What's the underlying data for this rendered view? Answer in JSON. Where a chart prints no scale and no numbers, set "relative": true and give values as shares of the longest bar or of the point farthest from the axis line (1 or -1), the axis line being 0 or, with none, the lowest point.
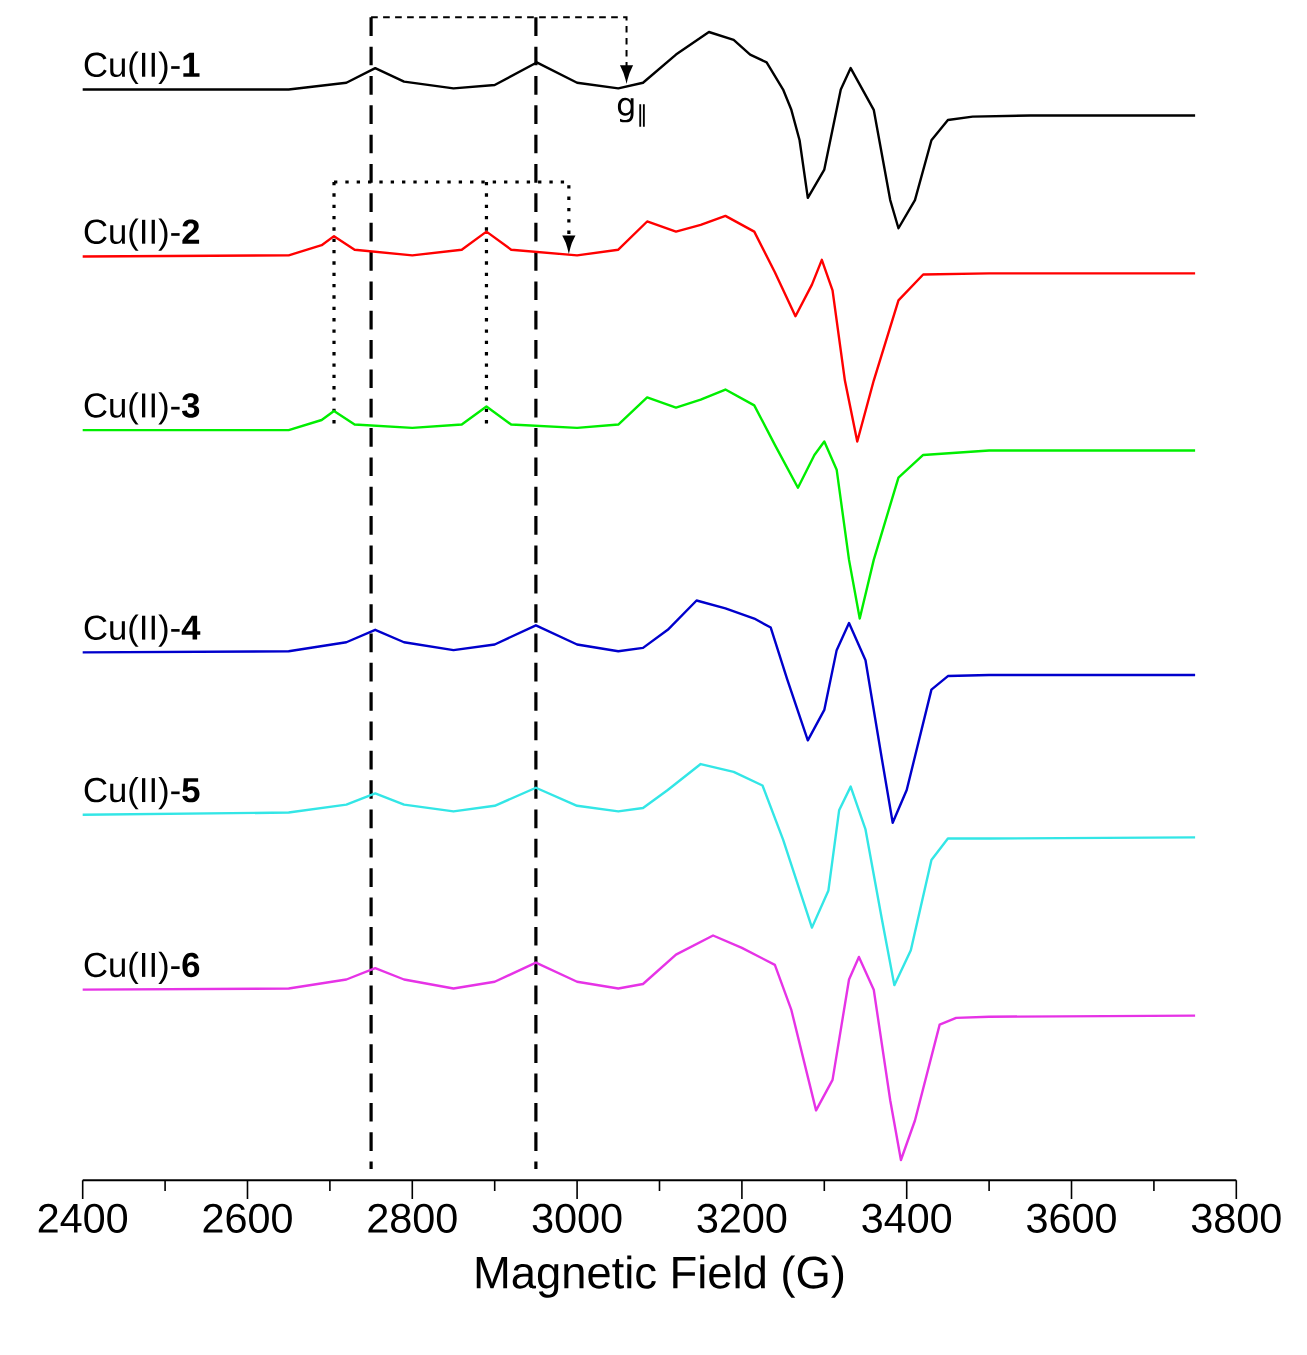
{
  "chart_data": {
    "type": "line",
    "relative": true,
    "xlabel": "Magnetic Field (G)",
    "xlim": [
      2400,
      3800
    ],
    "xticks": [
      2400,
      2600,
      2800,
      3000,
      3200,
      3400,
      3600,
      3800
    ],
    "grid": false,
    "annotations": [
      "g$_{‖}$"
    ],
    "ref_lines": [
      {
        "axis": "x",
        "value": 2750,
        "line_style": "dashed"
      },
      {
        "axis": "x",
        "value": 2950,
        "line_style": "dashed"
      },
      {
        "axis": "x",
        "value": 2705,
        "line_style": "dotted"
      },
      {
        "axis": "x",
        "value": 2890,
        "line_style": "dotted"
      }
    ],
    "series": [
      {
        "name": "Cu(II)-**1**",
        "color": "#000000",
        "x": [
          2400,
          2650,
          2720,
          2755,
          2790,
          2850,
          2900,
          2951,
          3000,
          3050,
          3080,
          3120,
          3160,
          3190,
          3210,
          3230,
          3250,
          3260,
          3270,
          3280,
          3300,
          3320,
          3332,
          3360,
          3380,
          3390,
          3410,
          3430,
          3450,
          3480,
          3550,
          3650,
          3750
        ],
        "values": [
          0.949,
          0.949,
          0.955,
          0.968,
          0.956,
          0.95,
          0.953,
          0.973,
          0.955,
          0.95,
          0.955,
          0.98,
          1.0,
          0.993,
          0.98,
          0.973,
          0.949,
          0.931,
          0.904,
          0.853,
          0.878,
          0.949,
          0.968,
          0.931,
          0.851,
          0.826,
          0.851,
          0.904,
          0.922,
          0.925,
          0.926,
          0.926,
          0.926
        ]
      },
      {
        "name": "Cu(II)-**2**",
        "color": "#ff0000",
        "x": [
          2400,
          2650,
          2690,
          2705,
          2730,
          2800,
          2860,
          2890,
          2920,
          3000,
          3050,
          3085,
          3120,
          3150,
          3180,
          3215,
          3240,
          3265,
          3285,
          3297,
          3310,
          3325,
          3340,
          3360,
          3390,
          3420,
          3500,
          3750
        ],
        "values": [
          0.801,
          0.802,
          0.811,
          0.819,
          0.807,
          0.802,
          0.807,
          0.823,
          0.807,
          0.802,
          0.807,
          0.832,
          0.823,
          0.829,
          0.837,
          0.823,
          0.787,
          0.748,
          0.776,
          0.798,
          0.771,
          0.691,
          0.637,
          0.691,
          0.762,
          0.785,
          0.786,
          0.786
        ]
      },
      {
        "name": "Cu(II)-**3**",
        "color": "#00ee00",
        "x": [
          2400,
          2650,
          2690,
          2705,
          2730,
          2800,
          2860,
          2890,
          2920,
          3000,
          3050,
          3085,
          3120,
          3150,
          3180,
          3215,
          3240,
          3268,
          3288,
          3300,
          3315,
          3330,
          3343,
          3360,
          3390,
          3420,
          3500,
          3750
        ],
        "values": [
          0.647,
          0.647,
          0.656,
          0.664,
          0.652,
          0.649,
          0.652,
          0.668,
          0.652,
          0.649,
          0.652,
          0.676,
          0.667,
          0.674,
          0.683,
          0.669,
          0.634,
          0.596,
          0.625,
          0.637,
          0.612,
          0.532,
          0.48,
          0.532,
          0.605,
          0.625,
          0.629,
          0.629
        ]
      },
      {
        "name": "Cu(II)-**4**",
        "color": "#0000cc",
        "x": [
          2400,
          2650,
          2720,
          2755,
          2790,
          2850,
          2900,
          2950,
          3000,
          3050,
          3080,
          3110,
          3145,
          3180,
          3215,
          3235,
          3255,
          3280,
          3300,
          3315,
          3330,
          3350,
          3370,
          3383,
          3400,
          3430,
          3450,
          3500,
          3750
        ],
        "values": [
          0.45,
          0.451,
          0.459,
          0.47,
          0.459,
          0.452,
          0.457,
          0.474,
          0.457,
          0.451,
          0.454,
          0.47,
          0.496,
          0.489,
          0.48,
          0.472,
          0.426,
          0.372,
          0.399,
          0.452,
          0.476,
          0.443,
          0.355,
          0.299,
          0.328,
          0.417,
          0.429,
          0.43,
          0.43
        ]
      },
      {
        "name": "Cu(II)-**5**",
        "color": "#33e6e6",
        "x": [
          2400,
          2650,
          2720,
          2755,
          2790,
          2850,
          2900,
          2950,
          3000,
          3050,
          3080,
          3110,
          3150,
          3190,
          3225,
          3250,
          3285,
          3305,
          3318,
          3332,
          3350,
          3370,
          3385,
          3405,
          3430,
          3450,
          3500,
          3750
        ],
        "values": [
          0.306,
          0.308,
          0.315,
          0.325,
          0.315,
          0.309,
          0.314,
          0.33,
          0.314,
          0.309,
          0.312,
          0.328,
          0.351,
          0.344,
          0.332,
          0.284,
          0.206,
          0.239,
          0.31,
          0.331,
          0.293,
          0.213,
          0.155,
          0.186,
          0.266,
          0.285,
          0.285,
          0.286
        ]
      },
      {
        "name": "Cu(II)-**6**",
        "color": "#e633e6",
        "x": [
          2400,
          2650,
          2720,
          2755,
          2790,
          2850,
          2900,
          2950,
          3000,
          3050,
          3080,
          3120,
          3165,
          3200,
          3240,
          3260,
          3290,
          3310,
          3330,
          3342,
          3360,
          3380,
          3393,
          3410,
          3440,
          3460,
          3500,
          3750
        ],
        "values": [
          0.151,
          0.152,
          0.16,
          0.17,
          0.16,
          0.152,
          0.158,
          0.175,
          0.158,
          0.152,
          0.156,
          0.182,
          0.199,
          0.188,
          0.173,
          0.133,
          0.044,
          0.071,
          0.16,
          0.18,
          0.151,
          0.053,
          0.0,
          0.035,
          0.12,
          0.126,
          0.127,
          0.128
        ]
      }
    ]
  }
}
